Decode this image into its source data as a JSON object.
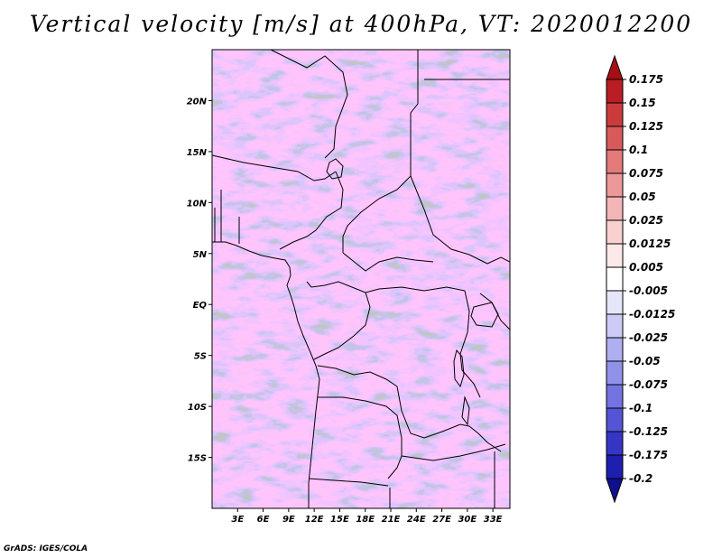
{
  "title": "Vertical velocity [m/s] at 400hPa, VT: 2020012200",
  "credit": "GrADS: IGES/COLA",
  "map": {
    "lon_range": [
      0,
      35
    ],
    "lat_range": [
      -20,
      25
    ],
    "lat_ticks": [
      {
        "value": 20,
        "label": "20N"
      },
      {
        "value": 15,
        "label": "15N"
      },
      {
        "value": 10,
        "label": "10N"
      },
      {
        "value": 5,
        "label": "5N"
      },
      {
        "value": 0,
        "label": "EQ"
      },
      {
        "value": -5,
        "label": "5S"
      },
      {
        "value": -10,
        "label": "10S"
      },
      {
        "value": -15,
        "label": "15S"
      }
    ],
    "lon_ticks": [
      {
        "value": 3,
        "label": "3E"
      },
      {
        "value": 6,
        "label": "6E"
      },
      {
        "value": 9,
        "label": "9E"
      },
      {
        "value": 12,
        "label": "12E"
      },
      {
        "value": 15,
        "label": "15E"
      },
      {
        "value": 18,
        "label": "18E"
      },
      {
        "value": 21,
        "label": "21E"
      },
      {
        "value": 24,
        "label": "24E"
      },
      {
        "value": 27,
        "label": "27E"
      },
      {
        "value": 30,
        "label": "30E"
      },
      {
        "value": 33,
        "label": "33E"
      }
    ]
  },
  "colorbar": {
    "levels": [
      "0.175",
      "0.15",
      "0.125",
      "0.1",
      "0.075",
      "0.05",
      "0.025",
      "0.0125",
      "0.005",
      "-0.005",
      "-0.0125",
      "-0.025",
      "-0.05",
      "-0.075",
      "-0.1",
      "-0.125",
      "-0.175",
      "-0.2"
    ],
    "colors": [
      "#a50f15",
      "#b81e24",
      "#cb3b3b",
      "#d95a5a",
      "#e47a7a",
      "#ec9898",
      "#f3b5b5",
      "#f8d0d0",
      "#fce8e8",
      "#ffffff",
      "#e6e6fb",
      "#cbcbf6",
      "#aeaef0",
      "#9191ea",
      "#7373e2",
      "#5454d6",
      "#3636c6",
      "#1e1eb0",
      "#10108f"
    ]
  }
}
